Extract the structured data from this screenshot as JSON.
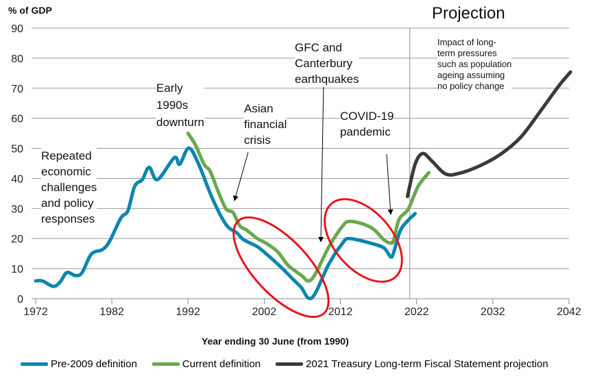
{
  "chart_data": {
    "type": "line",
    "ylabel": "% of GDP",
    "xlabel": "Year ending 30 June (from 1990)",
    "xlim": [
      1972,
      2042
    ],
    "ylim": [
      0,
      90
    ],
    "xticks": [
      1972,
      1982,
      1992,
      2002,
      2012,
      2022,
      2032,
      2042
    ],
    "yticks": [
      0,
      10,
      20,
      30,
      40,
      50,
      60,
      70,
      80,
      90
    ],
    "grid": true,
    "projection_label": "Projection",
    "projection_start": 2021.1,
    "series": [
      {
        "name": "Pre-2009 definition",
        "color": "#0b86ad",
        "points": [
          [
            1972,
            5.9
          ],
          [
            1972.9,
            5.9
          ],
          [
            1974.3,
            4.1
          ],
          [
            1975.2,
            5.5
          ],
          [
            1976.1,
            8.7
          ],
          [
            1977.2,
            7.7
          ],
          [
            1978.1,
            8.7
          ],
          [
            1979.3,
            14.8
          ],
          [
            1980.8,
            16.4
          ],
          [
            1981.7,
            19.1
          ],
          [
            1983.2,
            26.9
          ],
          [
            1984.1,
            29.2
          ],
          [
            1985,
            37.4
          ],
          [
            1986,
            39.6
          ],
          [
            1986.9,
            43.7
          ],
          [
            1988,
            39.6
          ],
          [
            1990.2,
            46.9
          ],
          [
            1990.9,
            44.7
          ],
          [
            1992.1,
            50.1
          ],
          [
            1993.4,
            44.7
          ],
          [
            1995.2,
            33.3
          ],
          [
            1997,
            24.6
          ],
          [
            1998.4,
            21.9
          ],
          [
            1999.3,
            19.6
          ],
          [
            2001.1,
            17.3
          ],
          [
            2002.4,
            14.6
          ],
          [
            2004.2,
            10.5
          ],
          [
            2005.8,
            6.4
          ],
          [
            2006.9,
            3.6
          ],
          [
            2007.8,
            0.2
          ],
          [
            2008.7,
            1.8
          ],
          [
            2010.5,
            11.6
          ],
          [
            2012.3,
            18.5
          ],
          [
            2013.2,
            20
          ],
          [
            2015.9,
            18.5
          ],
          [
            2017.7,
            16.9
          ],
          [
            2018.6,
            13.9
          ],
          [
            2019,
            15.5
          ],
          [
            2019.8,
            22.3
          ],
          [
            2020.6,
            25.3
          ],
          [
            2021.8,
            28.3
          ]
        ]
      },
      {
        "name": "Current definition",
        "color": "#6aa84f",
        "points": [
          [
            1992,
            55
          ],
          [
            1993,
            51
          ],
          [
            1994.1,
            44.7
          ],
          [
            1994.9,
            42.4
          ],
          [
            1995.9,
            36
          ],
          [
            1997,
            29.8
          ],
          [
            1997.9,
            28.7
          ],
          [
            1998.8,
            24.2
          ],
          [
            1999.7,
            22.8
          ],
          [
            2001.1,
            20
          ],
          [
            2002.4,
            18.2
          ],
          [
            2003.8,
            15.5
          ],
          [
            2005.1,
            11.2
          ],
          [
            2006.9,
            7.7
          ],
          [
            2007.8,
            5.9
          ],
          [
            2008.7,
            8.2
          ],
          [
            2010.5,
            17.3
          ],
          [
            2012.3,
            24.2
          ],
          [
            2013.2,
            25.7
          ],
          [
            2015,
            24.8
          ],
          [
            2016.4,
            23
          ],
          [
            2017.7,
            19.6
          ],
          [
            2018.6,
            18.5
          ],
          [
            2019,
            19.6
          ],
          [
            2019.7,
            26.4
          ],
          [
            2020.9,
            29.8
          ],
          [
            2022.2,
            37.4
          ],
          [
            2023.6,
            41.9
          ]
        ]
      },
      {
        "name": "2021 Treasury Long-term Fiscal Statement projection",
        "color": "#3a3a38",
        "points": [
          [
            2020.8,
            34
          ],
          [
            2021.8,
            44.7
          ],
          [
            2022.8,
            48.3
          ],
          [
            2024,
            45.8
          ],
          [
            2025.8,
            41.5
          ],
          [
            2027.6,
            41.7
          ],
          [
            2030.3,
            44.2
          ],
          [
            2033,
            48
          ],
          [
            2035.7,
            53.8
          ],
          [
            2038.4,
            62.9
          ],
          [
            2040.7,
            70.9
          ],
          [
            2042.2,
            75.4
          ]
        ]
      }
    ],
    "annotations": {
      "repeated": "Repeated\neconomic\nchallenges\nand policy\nresponses",
      "early1990s": "Early\n1990s\ndownturn",
      "asian": "Asian\nfinancial\ncrisis",
      "gfc": "GFC and\nCanterbury\nearthquakes",
      "covid": "COVID-19\npandemic",
      "impact": "Impact of long-\nterm pressures\nsuch as population\nageing assuming\nno policy change"
    }
  }
}
